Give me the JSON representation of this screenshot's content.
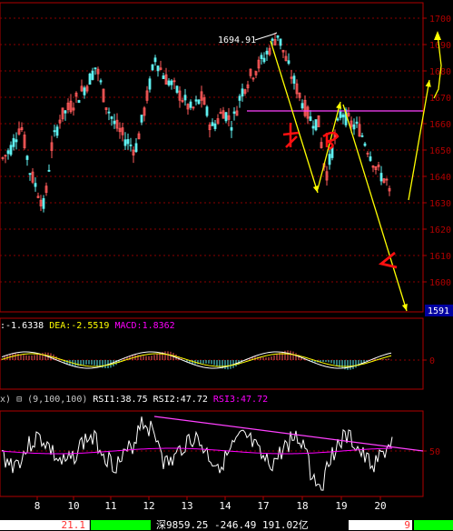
{
  "colors": {
    "bg": "#000000",
    "grid": "#8b0000",
    "axis": "#b00000",
    "up": "#ff5a5a",
    "down": "#5ff0f0",
    "dif": "#ffffff",
    "dea": "#ffff00",
    "macd_label": "#ff00ff",
    "rsi1": "#ffffff",
    "rsi2": "#ff00ff",
    "rsi3": "#ff00ff",
    "trend": "#ff40ff",
    "annot": "#ffff00",
    "hand": "#ff1010",
    "last_price_bg": "#0000a0",
    "status_green": "#00ff00",
    "status_red": "#ff3030"
  },
  "price_panel": {
    "ticks": [
      "1700",
      "1690",
      "1680",
      "1670",
      "1660",
      "1650",
      "1640",
      "1630",
      "1620",
      "1610",
      "1600"
    ],
    "last_price": "1591",
    "peak_label": "1694.91"
  },
  "macd_panel": {
    "dif_label": ":-1.6338",
    "dea_label": "DEA:-2.5519",
    "macd_label": "MACD:1.8362",
    "zero_tick": "0"
  },
  "rsi_panel": {
    "prefix": "x)",
    "toggle": "⊟",
    "params": "(9,100,100)",
    "rsi1_label": "RSI1:38.75",
    "rsi2_label": "RSI2:47.72",
    "rsi3_label": "RSI3:47.72",
    "tick": "50"
  },
  "x_axis": {
    "labels": [
      "8",
      "10",
      "11",
      "12",
      "13",
      "14",
      "17",
      "18",
      "19",
      "20"
    ]
  },
  "status_bar": {
    "left_value": "21.1",
    "index_text": "深9859.25 -246.49 191.02亿",
    "right_value": "9"
  }
}
